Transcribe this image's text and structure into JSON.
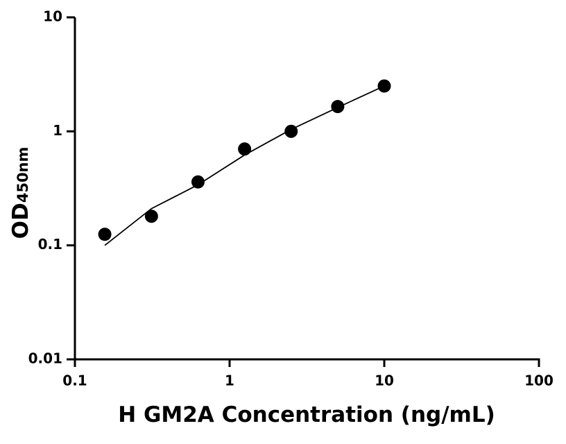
{
  "chart_data": {
    "type": "scatter",
    "x_label": "H GM2A Concentration (ng/mL)",
    "y_label": "OD",
    "y_label_subscript": "450nm",
    "x": [
      0.156,
      0.3125,
      0.625,
      1.25,
      2.5,
      5,
      10
    ],
    "series": [
      {
        "type": "scatter",
        "color": "#000000",
        "values": [
          0.125,
          0.18,
          0.36,
          0.7,
          1.0,
          1.65,
          2.5
        ]
      },
      {
        "type": "line",
        "color": "#000000",
        "values": [
          0.1,
          0.21,
          0.34,
          0.62,
          1.04,
          1.62,
          2.5
        ]
      }
    ],
    "xlim": [
      0.1,
      100
    ],
    "xticks": [
      0.1,
      1,
      10,
      100
    ],
    "ylim": [
      0.01,
      10
    ],
    "yticks": [
      0.01,
      0.1,
      1,
      10
    ],
    "log_x": true,
    "log_y": true
  }
}
